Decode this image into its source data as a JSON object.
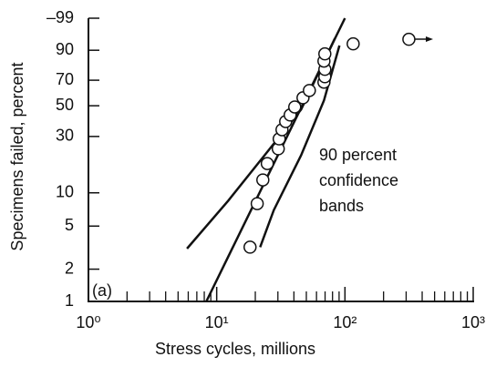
{
  "chart_data": {
    "type": "scatter",
    "xscale": "log",
    "yscale": "weibull",
    "xlabel": "Stress cycles, millions",
    "ylabel": "Specimens failed, percent",
    "panel_label": "(a)",
    "annotation": [
      "90 percent",
      "confidence",
      "bands"
    ],
    "xlim": [
      1,
      1000
    ],
    "xticks": [
      {
        "value": 1,
        "label": "10⁰"
      },
      {
        "value": 10,
        "label": "10¹"
      },
      {
        "value": 100,
        "label": "10²"
      },
      {
        "value": 1000,
        "label": "10³"
      }
    ],
    "xminorticks": [
      2,
      3,
      4,
      5,
      6,
      7,
      8,
      9,
      20,
      30,
      40,
      50,
      60,
      70,
      80,
      90,
      200,
      300,
      400,
      500,
      600,
      700,
      800,
      900
    ],
    "ylim": [
      1,
      99
    ],
    "yticks": [
      1,
      2,
      5,
      10,
      30,
      50,
      70,
      90,
      {
        "value": 99,
        "label": "–99"
      }
    ],
    "points": {
      "x": [
        18.2,
        20.7,
        22.9,
        24.8,
        30.2,
        30.7,
        32.3,
        34.5,
        37.4,
        40.6,
        47.1,
        52.8,
        68.6,
        69.7,
        69.7,
        68.6,
        69.7,
        115.9,
        315
      ],
      "y": [
        3.2,
        8.0,
        13.0,
        18.0,
        23.9,
        28.7,
        33.8,
        38.9,
        43.3,
        49.1,
        56.1,
        61.9,
        68.5,
        72.7,
        78.2,
        83.8,
        88.1,
        92.9,
        94.6
      ]
    },
    "lines": [
      {
        "x": [
          8.3,
          100
        ],
        "y": [
          1,
          99
        ]
      },
      {
        "x": [
          5.87,
          12.3,
          23.6,
          45.5,
          83.5
        ],
        "y": [
          3.1,
          8.5,
          21.1,
          47.2,
          94.9
        ]
      },
      {
        "x": [
          21.8,
          27.9,
          45.5,
          68.6,
          90.6
        ],
        "y": [
          3.2,
          7.0,
          21.1,
          54.0,
          92.2
        ]
      }
    ]
  }
}
